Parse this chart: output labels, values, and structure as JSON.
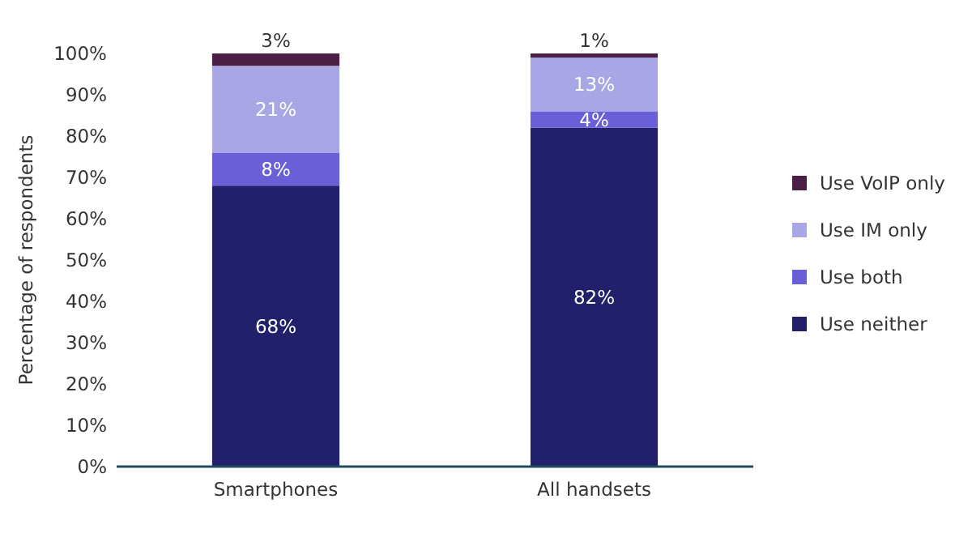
{
  "chart_data": {
    "type": "bar",
    "stacked": true,
    "ylabel": "Percentage of respondents",
    "categories": [
      "Smartphones",
      "All handsets"
    ],
    "series": [
      {
        "name": "Use neither",
        "color": "#23206b",
        "values": [
          68,
          82
        ],
        "value_labels": [
          "68%",
          "82%"
        ]
      },
      {
        "name": "Use both",
        "color": "#6a5fd6",
        "values": [
          8,
          4
        ],
        "value_labels": [
          "8%",
          "4%"
        ]
      },
      {
        "name": "Use IM only",
        "color": "#a9a6e6",
        "values": [
          21,
          13
        ],
        "value_labels": [
          "21%",
          "13%"
        ]
      },
      {
        "name": "Use VoIP only",
        "color": "#4b1e46",
        "values": [
          3,
          1
        ],
        "value_labels": [
          "3%",
          "1%"
        ]
      }
    ],
    "ylim": [
      0,
      100
    ],
    "yticks": [
      {
        "value": 0,
        "label": "0%"
      },
      {
        "value": 10,
        "label": "10%"
      },
      {
        "value": 20,
        "label": "20%"
      },
      {
        "value": 30,
        "label": "30%"
      },
      {
        "value": 40,
        "label": "40%"
      },
      {
        "value": 50,
        "label": "50%"
      },
      {
        "value": 60,
        "label": "60%"
      },
      {
        "value": 70,
        "label": "70%"
      },
      {
        "value": 80,
        "label": "80%"
      },
      {
        "value": 90,
        "label": "90%"
      },
      {
        "value": 100,
        "label": "100%"
      }
    ],
    "legend": "right",
    "grid": false
  }
}
